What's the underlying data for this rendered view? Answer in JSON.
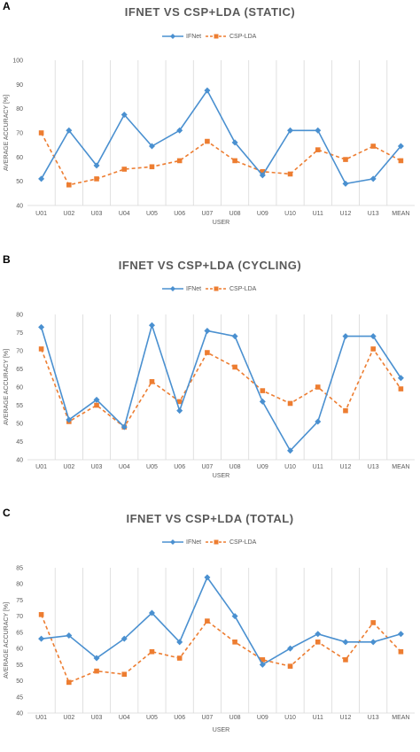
{
  "colors": {
    "ifnet": "#4a90d0",
    "csp": "#ed7d31",
    "grid": "#d9d9d9",
    "text": "#595959"
  },
  "chart_data": [
    {
      "panel": "A",
      "type": "line",
      "title": "IFNET VS CSP+LDA (STATIC)",
      "xlabel": "USER",
      "ylabel": "AVERAGE ACCURACY [%]",
      "ylim": [
        40,
        100
      ],
      "yticks": [
        40,
        50,
        60,
        70,
        80,
        90,
        100
      ],
      "categories": [
        "U01",
        "U02",
        "U03",
        "U04",
        "U05",
        "U06",
        "U07",
        "U08",
        "U09",
        "U10",
        "U11",
        "U12",
        "U13",
        "MEAN"
      ],
      "legend_position": "top",
      "grid": "vertical",
      "series": [
        {
          "name": "IFNet",
          "values": [
            51,
            71,
            56.5,
            77.5,
            64.5,
            71,
            87.5,
            66,
            52.5,
            71,
            71,
            49,
            51,
            64.5
          ]
        },
        {
          "name": "CSP-LDA",
          "values": [
            70,
            48.5,
            51,
            55,
            56,
            58.5,
            66.5,
            58.5,
            54,
            53,
            63,
            59,
            64.5,
            58.5
          ]
        }
      ]
    },
    {
      "panel": "B",
      "type": "line",
      "title": "IFNET VS CSP+LDA (CYCLING)",
      "xlabel": "USER",
      "ylabel": "AVERAGE ACCURACY [%]",
      "ylim": [
        40,
        80
      ],
      "yticks": [
        40,
        45,
        50,
        55,
        60,
        65,
        70,
        75,
        80
      ],
      "categories": [
        "U01",
        "U02",
        "U03",
        "U04",
        "U05",
        "U06",
        "U07",
        "U08",
        "U09",
        "U10",
        "U11",
        "U12",
        "U13",
        "MEAN"
      ],
      "legend_position": "top",
      "grid": "vertical",
      "series": [
        {
          "name": "IFNet",
          "values": [
            76.5,
            51,
            56.5,
            49,
            77,
            53.5,
            75.5,
            74,
            56,
            42.5,
            50.5,
            74,
            74,
            62.5
          ]
        },
        {
          "name": "CSP-LDA",
          "values": [
            70.5,
            50.5,
            55,
            49,
            61.5,
            56,
            69.5,
            65.5,
            59,
            55.5,
            60,
            53.5,
            70.5,
            59.5
          ]
        }
      ]
    },
    {
      "panel": "C",
      "type": "line",
      "title": "IFNET VS CSP+LDA (TOTAL)",
      "xlabel": "USER",
      "ylabel": "AVERAGE ACCURACY [%]",
      "ylim": [
        40,
        85
      ],
      "yticks": [
        40,
        45,
        50,
        55,
        60,
        65,
        70,
        75,
        80,
        85
      ],
      "categories": [
        "U01",
        "U02",
        "U03",
        "U04",
        "U05",
        "U06",
        "U07",
        "U08",
        "U09",
        "U10",
        "U11",
        "U12",
        "U13",
        "MEAN"
      ],
      "legend_position": "top",
      "grid": "vertical",
      "series": [
        {
          "name": "IFNet",
          "values": [
            63,
            64,
            57,
            63,
            71,
            62,
            82,
            70,
            55,
            60,
            64.5,
            62,
            62,
            64.5
          ]
        },
        {
          "name": "CSP-LDA",
          "values": [
            70.5,
            49.5,
            53,
            52,
            59,
            57,
            68.5,
            62,
            56.5,
            54.5,
            62,
            56.5,
            68,
            59
          ]
        }
      ]
    }
  ]
}
